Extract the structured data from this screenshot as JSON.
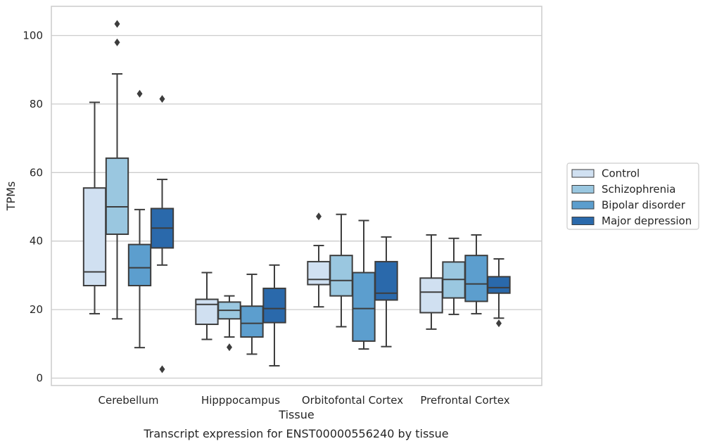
{
  "chart_data": {
    "type": "box",
    "xlabel": "Tissue",
    "ylabel": "TPMs",
    "caption": "Transcript expression for ENST00000556240 by tissue",
    "ylim": [
      -2,
      108
    ],
    "yticks": [
      0,
      20,
      40,
      60,
      80,
      100
    ],
    "grid": "horizontal",
    "legend_position": "right",
    "categories": [
      "Cerebellum",
      "Hipppocampus",
      "Orbitofontal Cortex",
      "Prefrontal Cortex"
    ],
    "series": [
      {
        "name": "Control",
        "color": "#d0e0f1",
        "boxes": [
          {
            "whisker_low": 18.8,
            "q1": 27,
            "median": 31,
            "q3": 55.5,
            "whisker_high": 80.5,
            "outliers": []
          },
          {
            "whisker_low": 11.3,
            "q1": 15.7,
            "median": 21.5,
            "q3": 23,
            "whisker_high": 30.8,
            "outliers": []
          },
          {
            "whisker_low": 20.8,
            "q1": 27.3,
            "median": 28.8,
            "q3": 34,
            "whisker_high": 38.7,
            "outliers": [
              47.2
            ]
          },
          {
            "whisker_low": 14.3,
            "q1": 19.1,
            "median": 25.1,
            "q3": 29.2,
            "whisker_high": 41.8,
            "outliers": []
          }
        ]
      },
      {
        "name": "Schizophrenia",
        "color": "#9ac7e0",
        "boxes": [
          {
            "whisker_low": 17.3,
            "q1": 42,
            "median": 50,
            "q3": 64.2,
            "whisker_high": 88.8,
            "outliers": [
              98,
              103.4
            ]
          },
          {
            "whisker_low": 12,
            "q1": 17.3,
            "median": 19.8,
            "q3": 22.2,
            "whisker_high": 24,
            "outliers": [
              9
            ]
          },
          {
            "whisker_low": 15,
            "q1": 24,
            "median": 28.5,
            "q3": 35.8,
            "whisker_high": 47.8,
            "outliers": []
          },
          {
            "whisker_low": 18.6,
            "q1": 23.4,
            "median": 28.8,
            "q3": 33.9,
            "whisker_high": 40.8,
            "outliers": []
          }
        ]
      },
      {
        "name": "Bipolar disorder",
        "color": "#5c9ece",
        "boxes": [
          {
            "whisker_low": 8.9,
            "q1": 27,
            "median": 32.2,
            "q3": 39,
            "whisker_high": 49.2,
            "outliers": [
              83
            ]
          },
          {
            "whisker_low": 7,
            "q1": 12,
            "median": 16,
            "q3": 21,
            "whisker_high": 30.3,
            "outliers": []
          },
          {
            "whisker_low": 8.5,
            "q1": 10.8,
            "median": 20.3,
            "q3": 30.8,
            "whisker_high": 46,
            "outliers": []
          },
          {
            "whisker_low": 18.8,
            "q1": 22.4,
            "median": 27.5,
            "q3": 35.8,
            "whisker_high": 41.8,
            "outliers": []
          }
        ]
      },
      {
        "name": "Major depression",
        "color": "#2a69ab",
        "boxes": [
          {
            "whisker_low": 33,
            "q1": 38,
            "median": 43.8,
            "q3": 49.5,
            "whisker_high": 58,
            "outliers": [
              81.5,
              2.6
            ]
          },
          {
            "whisker_low": 3.6,
            "q1": 16.2,
            "median": 20.3,
            "q3": 26.2,
            "whisker_high": 33,
            "outliers": []
          },
          {
            "whisker_low": 9.2,
            "q1": 22.8,
            "median": 24.8,
            "q3": 34,
            "whisker_high": 41.2,
            "outliers": []
          },
          {
            "whisker_low": 17.5,
            "q1": 24.8,
            "median": 26.4,
            "q3": 29.6,
            "whisker_high": 34.8,
            "outliers": [
              16
            ]
          }
        ]
      }
    ]
  }
}
